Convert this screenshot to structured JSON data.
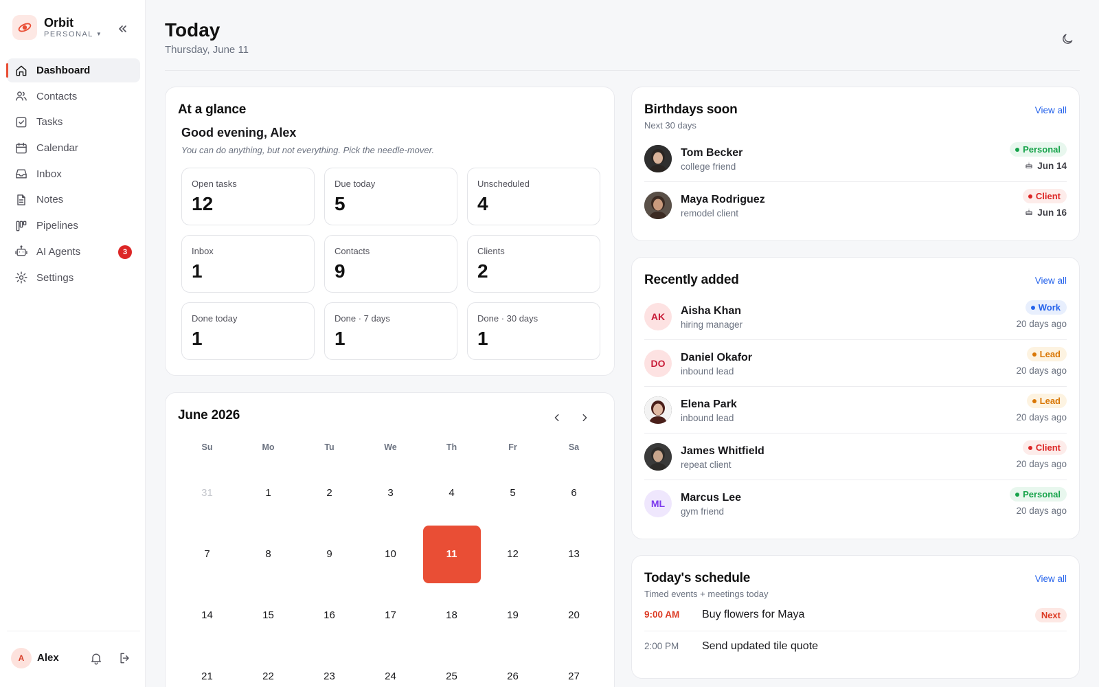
{
  "brand": {
    "name": "Orbit",
    "workspace": "PERSONAL"
  },
  "sidebar": {
    "items": [
      {
        "label": "Dashboard",
        "icon": "home-icon",
        "active": true
      },
      {
        "label": "Contacts",
        "icon": "users-icon"
      },
      {
        "label": "Tasks",
        "icon": "check-square-icon"
      },
      {
        "label": "Calendar",
        "icon": "calendar-icon"
      },
      {
        "label": "Inbox",
        "icon": "inbox-icon"
      },
      {
        "label": "Notes",
        "icon": "note-icon"
      },
      {
        "label": "Pipelines",
        "icon": "kanban-icon"
      },
      {
        "label": "AI Agents",
        "icon": "robot-icon",
        "badge": "3"
      },
      {
        "label": "Settings",
        "icon": "gear-icon"
      }
    ],
    "user": {
      "initial": "A",
      "name": "Alex"
    }
  },
  "header": {
    "title": "Today",
    "date": "Thursday, June 11"
  },
  "glance": {
    "title": "At a glance",
    "greeting": "Good evening, Alex",
    "motto": "You can do anything, but not everything. Pick the needle-mover.",
    "stats": [
      {
        "label": "Open tasks",
        "value": "12"
      },
      {
        "label": "Due today",
        "value": "5"
      },
      {
        "label": "Unscheduled",
        "value": "4"
      },
      {
        "label": "Inbox",
        "value": "1"
      },
      {
        "label": "Contacts",
        "value": "9"
      },
      {
        "label": "Clients",
        "value": "2"
      },
      {
        "label": "Done today",
        "value": "1"
      },
      {
        "label": "Done · 7 days",
        "value": "1"
      },
      {
        "label": "Done · 30 days",
        "value": "1"
      }
    ]
  },
  "calendar": {
    "title": "June 2026",
    "weekdays": [
      "Su",
      "Mo",
      "Tu",
      "We",
      "Th",
      "Fr",
      "Sa"
    ],
    "days": [
      {
        "n": "31",
        "muted": true
      },
      {
        "n": "1"
      },
      {
        "n": "2"
      },
      {
        "n": "3"
      },
      {
        "n": "4"
      },
      {
        "n": "5"
      },
      {
        "n": "6"
      },
      {
        "n": "7"
      },
      {
        "n": "8"
      },
      {
        "n": "9"
      },
      {
        "n": "10"
      },
      {
        "n": "11",
        "today": true
      },
      {
        "n": "12"
      },
      {
        "n": "13"
      },
      {
        "n": "14"
      },
      {
        "n": "15"
      },
      {
        "n": "16"
      },
      {
        "n": "17"
      },
      {
        "n": "18"
      },
      {
        "n": "19"
      },
      {
        "n": "20"
      },
      {
        "n": "21"
      },
      {
        "n": "22"
      },
      {
        "n": "23"
      },
      {
        "n": "24"
      },
      {
        "n": "25"
      },
      {
        "n": "26"
      },
      {
        "n": "27"
      }
    ]
  },
  "birthdays": {
    "title": "Birthdays soon",
    "subtitle": "Next 30 days",
    "view_all": "View all",
    "items": [
      {
        "name": "Tom Becker",
        "note": "college friend",
        "tag": "Personal",
        "tone": "green",
        "date": "Jun 14",
        "photo": "tom"
      },
      {
        "name": "Maya Rodriguez",
        "note": "remodel client",
        "tag": "Client",
        "tone": "red",
        "date": "Jun 16",
        "photo": "maya"
      }
    ]
  },
  "recent": {
    "title": "Recently added",
    "view_all": "View all",
    "items": [
      {
        "name": "Aisha Khan",
        "note": "hiring manager",
        "tag": "Work",
        "tone": "blue",
        "added": "20 days ago",
        "initials": "AK",
        "avatar_tone": "pink"
      },
      {
        "name": "Daniel Okafor",
        "note": "inbound lead",
        "tag": "Lead",
        "tone": "amber",
        "added": "20 days ago",
        "initials": "DO",
        "avatar_tone": "pink"
      },
      {
        "name": "Elena Park",
        "note": "inbound lead",
        "tag": "Lead",
        "tone": "amber",
        "added": "20 days ago",
        "photo": "elena"
      },
      {
        "name": "James Whitfield",
        "note": "repeat client",
        "tag": "Client",
        "tone": "red",
        "added": "20 days ago",
        "photo": "james"
      },
      {
        "name": "Marcus Lee",
        "note": "gym friend",
        "tag": "Personal",
        "tone": "green",
        "added": "20 days ago",
        "initials": "ML",
        "avatar_tone": "purple"
      }
    ]
  },
  "schedule": {
    "title": "Today's schedule",
    "subtitle": "Timed events + meetings today",
    "view_all": "View all",
    "items": [
      {
        "time": "9:00 AM",
        "title": "Buy flowers for Maya",
        "tag": "Next",
        "next": true
      },
      {
        "time": "2:00 PM",
        "title": "Send updated tile quote"
      }
    ]
  },
  "colors": {
    "accent": "#e94e35",
    "green": "#16a34a",
    "red": "#dc2626",
    "blue": "#2563eb",
    "amber": "#d97706"
  }
}
